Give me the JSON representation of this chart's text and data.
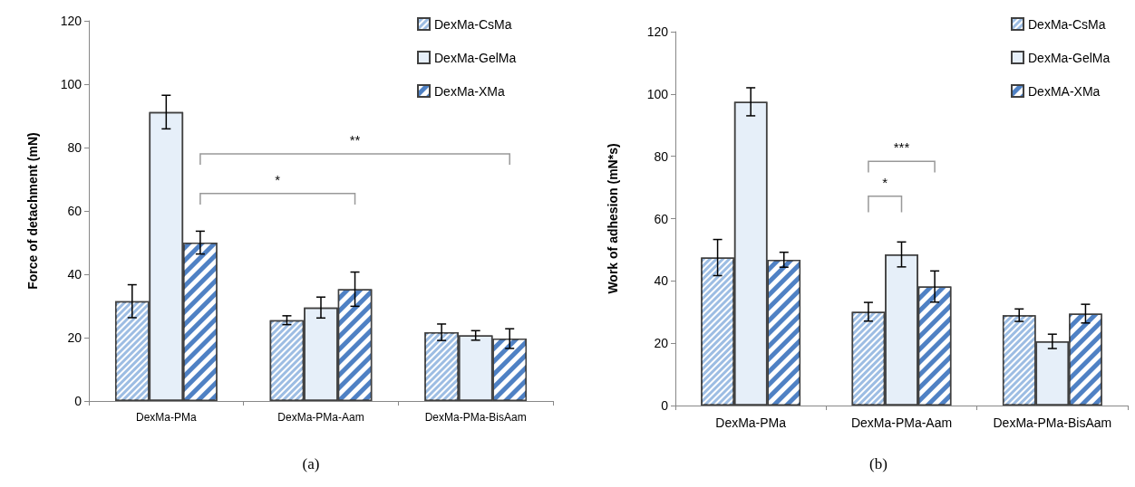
{
  "chart_data": [
    {
      "type": "bar",
      "ylabel": "Force of detachment (mN)",
      "categories": [
        "DexMa-PMa",
        "DexMa-PMa-Aam",
        "DexMa-PMa-BisAam"
      ],
      "ylim": [
        0,
        120
      ],
      "yticks": [
        0,
        20,
        40,
        60,
        80,
        100,
        120
      ],
      "grid": false,
      "legend": "top right",
      "series": [
        {
          "name": "DexMa-CsMa",
          "color": "#9dbde3",
          "values": [
            31.5,
            25.5,
            21.7
          ],
          "errors": [
            5.2,
            1.4,
            2.6
          ]
        },
        {
          "name": "DexMa-GelMa",
          "color": "#e6eff9",
          "values": [
            91.2,
            29.5,
            20.7
          ],
          "errors": [
            5.3,
            3.3,
            1.5
          ]
        },
        {
          "name": "DexMa-XMa",
          "color": "#4f81c4",
          "values": [
            50,
            35.3,
            19.7
          ],
          "errors": [
            3.6,
            5.4,
            3.1
          ]
        }
      ],
      "annotations": [
        "**",
        "*",
        "(a)"
      ]
    },
    {
      "type": "bar",
      "ylabel": "Work of adhesion (mN*s)",
      "categories": [
        "DexMa-PMa",
        "DexMa-PMa-Aam",
        "DexMa-PMa-BisAam"
      ],
      "ylim": [
        0,
        120
      ],
      "yticks": [
        0,
        20,
        40,
        60,
        80,
        100,
        120
      ],
      "grid": false,
      "legend": "top right",
      "series": [
        {
          "name": "DexMa-CsMa",
          "color": "#9dbde3",
          "values": [
            47.5,
            30.1,
            29
          ],
          "errors": [
            5.8,
            3,
            2
          ]
        },
        {
          "name": "DexMa-GelMa",
          "color": "#e6eff9",
          "values": [
            97.5,
            48.5,
            20.6
          ],
          "errors": [
            4.5,
            4,
            2.3
          ]
        },
        {
          "name": "DexMA-XMa",
          "color": "#4f81c4",
          "values": [
            46.8,
            38.2,
            29.5
          ],
          "errors": [
            2.4,
            5,
            3
          ]
        }
      ],
      "annotations": [
        "***",
        "*",
        "(b)"
      ]
    }
  ]
}
